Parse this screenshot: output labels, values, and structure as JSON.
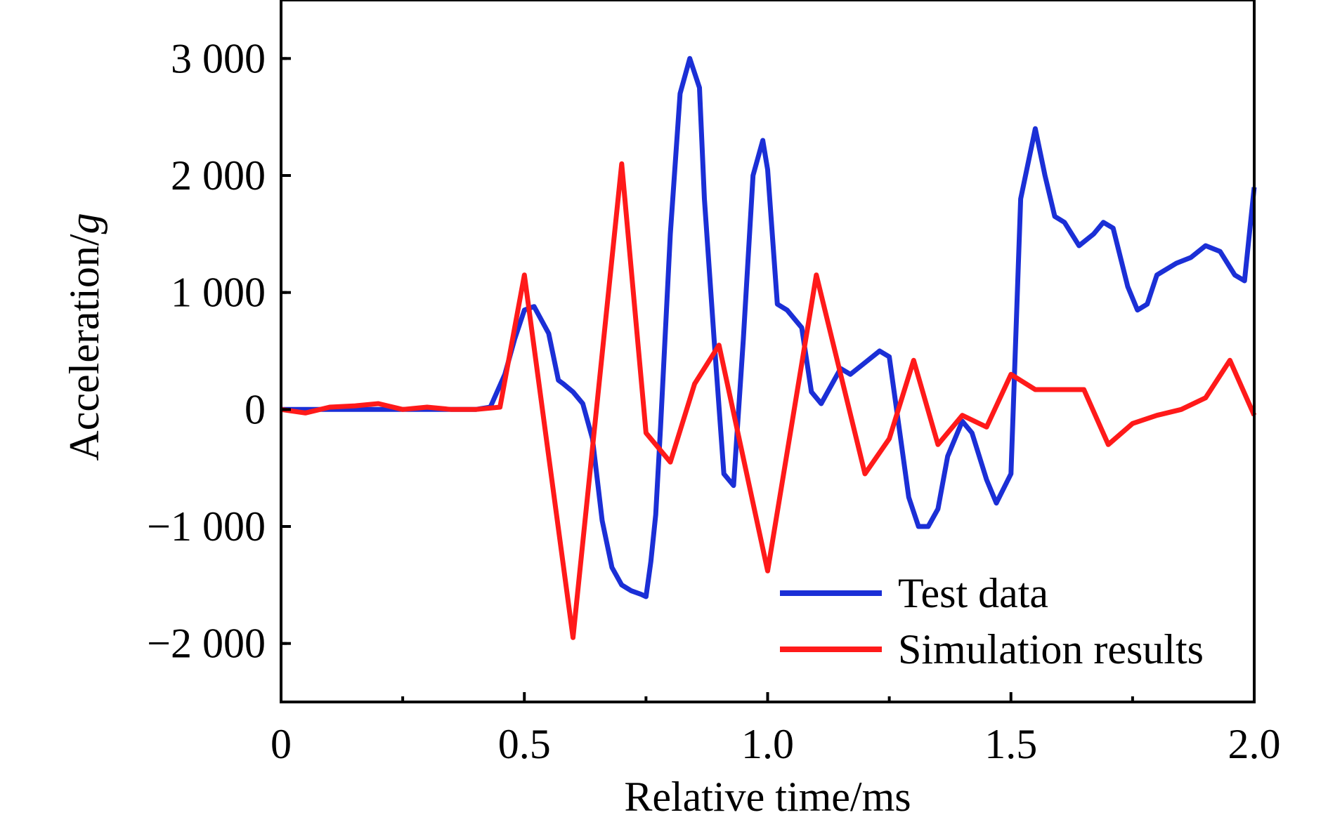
{
  "chart_data": {
    "type": "line",
    "xlabel": "Relative time/ms",
    "ylabel_main": "Acceleration/",
    "ylabel_unit": "g",
    "xlim": [
      0,
      2.0
    ],
    "ylim": [
      -2500,
      3500
    ],
    "x_ticks": [
      0,
      0.5,
      1.0,
      1.5,
      2.0
    ],
    "x_tick_labels": [
      "0",
      "0.5",
      "1.0",
      "1.5",
      "2.0"
    ],
    "y_ticks": [
      -2000,
      -1000,
      0,
      1000,
      2000,
      3000
    ],
    "y_tick_labels": [
      "−2 000",
      "−1 000",
      "0",
      "1 000",
      "2 000",
      "3 000"
    ],
    "grid": false,
    "legend_position": "bottom-right",
    "series": [
      {
        "name": "Test data",
        "color": "#1b2fd6",
        "x": [
          0,
          0.05,
          0.1,
          0.2,
          0.3,
          0.4,
          0.43,
          0.46,
          0.48,
          0.5,
          0.52,
          0.55,
          0.57,
          0.58,
          0.6,
          0.62,
          0.64,
          0.66,
          0.68,
          0.7,
          0.72,
          0.74,
          0.75,
          0.76,
          0.77,
          0.78,
          0.8,
          0.82,
          0.84,
          0.86,
          0.87,
          0.89,
          0.91,
          0.93,
          0.95,
          0.97,
          0.99,
          1.0,
          1.02,
          1.04,
          1.07,
          1.09,
          1.11,
          1.13,
          1.15,
          1.17,
          1.2,
          1.23,
          1.25,
          1.27,
          1.29,
          1.31,
          1.33,
          1.35,
          1.37,
          1.4,
          1.42,
          1.45,
          1.47,
          1.5,
          1.52,
          1.55,
          1.57,
          1.59,
          1.61,
          1.64,
          1.67,
          1.69,
          1.71,
          1.74,
          1.76,
          1.78,
          1.8,
          1.84,
          1.87,
          1.9,
          1.93,
          1.96,
          1.98,
          2.0
        ],
        "y": [
          0,
          0,
          0,
          0,
          0,
          0,
          20,
          300,
          600,
          850,
          880,
          650,
          250,
          220,
          150,
          50,
          -250,
          -950,
          -1350,
          -1500,
          -1550,
          -1580,
          -1600,
          -1300,
          -900,
          -150,
          1500,
          2700,
          3000,
          2750,
          1800,
          600,
          -550,
          -650,
          600,
          2000,
          2300,
          2050,
          900,
          850,
          700,
          150,
          50,
          200,
          350,
          300,
          400,
          500,
          450,
          -150,
          -750,
          -1000,
          -1000,
          -850,
          -400,
          -100,
          -200,
          -600,
          -800,
          -550,
          1800,
          2400,
          2000,
          1650,
          1600,
          1400,
          1500,
          1600,
          1550,
          1050,
          850,
          900,
          1150,
          1250,
          1300,
          1400,
          1350,
          1150,
          1100,
          1900
        ]
      },
      {
        "name": "Simulation results",
        "color": "#ff1a1a",
        "x": [
          0,
          0.05,
          0.1,
          0.15,
          0.2,
          0.25,
          0.3,
          0.35,
          0.4,
          0.45,
          0.5,
          0.6,
          0.7,
          0.75,
          0.8,
          0.85,
          0.9,
          1.0,
          1.1,
          1.2,
          1.25,
          1.3,
          1.35,
          1.4,
          1.45,
          1.5,
          1.55,
          1.6,
          1.65,
          1.7,
          1.75,
          1.8,
          1.85,
          1.9,
          1.95,
          2.0
        ],
        "y": [
          0,
          -30,
          20,
          30,
          50,
          0,
          20,
          0,
          0,
          20,
          1150,
          -1950,
          2100,
          -200,
          -450,
          220,
          550,
          -1380,
          1150,
          -550,
          -250,
          420,
          -300,
          -50,
          -150,
          300,
          170,
          170,
          170,
          -300,
          -120,
          -50,
          0,
          100,
          420,
          -50
        ]
      }
    ]
  }
}
